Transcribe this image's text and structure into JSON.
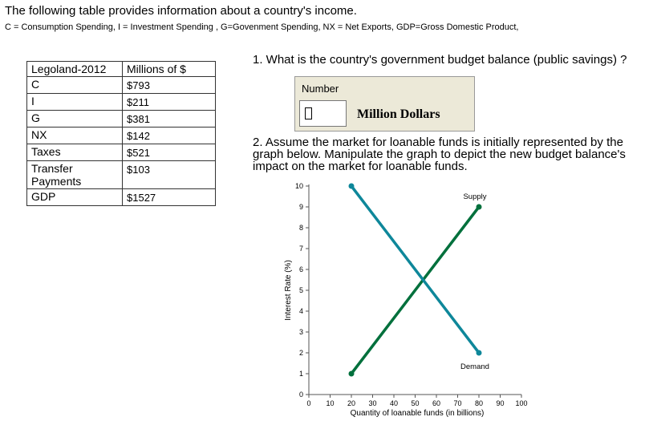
{
  "intro": {
    "title": "The following table provides information about a country's income.",
    "definitions": "C = Consumption Spending, I = Investment Spending , G=Govenment Spending, NX = Net Exports, GDP=Gross Domestic Product,"
  },
  "table": {
    "header": [
      "Legoland-2012",
      "Millions of $"
    ],
    "rows": [
      [
        "C",
        "$793"
      ],
      [
        "I",
        "$211"
      ],
      [
        "G",
        "$381"
      ],
      [
        "NX",
        "$142"
      ],
      [
        "Taxes",
        "$521"
      ],
      [
        "Transfer Payments",
        "$103"
      ],
      [
        "GDP",
        "$1527"
      ]
    ]
  },
  "question1": {
    "text": "1. What is the country's government budget balance (public savings) ?",
    "answer_label": "Number",
    "answer_value": "",
    "answer_unit": "Million  Dollars"
  },
  "question2": {
    "text": "2. Assume the market for loanable funds is initially represented by the graph below. Manipulate the graph to depict the new budget balance's impact on the market for loanable funds."
  },
  "chart_data": {
    "type": "line",
    "xlabel": "Quantity of loanable funds (in billions)",
    "ylabel": "Interest Rate (%)",
    "xlim": [
      0,
      100
    ],
    "ylim": [
      0,
      10
    ],
    "x_ticks": [
      0,
      10,
      20,
      30,
      40,
      50,
      60,
      70,
      80,
      90,
      100
    ],
    "y_ticks": [
      0,
      1,
      2,
      3,
      4,
      5,
      6,
      7,
      8,
      9,
      10
    ],
    "grid": false,
    "series": [
      {
        "name": "Supply",
        "color": "#00703c",
        "x": [
          20,
          80
        ],
        "y": [
          1,
          9
        ]
      },
      {
        "name": "Demand",
        "color": "#0e879a",
        "x": [
          20,
          80
        ],
        "y": [
          10,
          2
        ]
      }
    ]
  }
}
